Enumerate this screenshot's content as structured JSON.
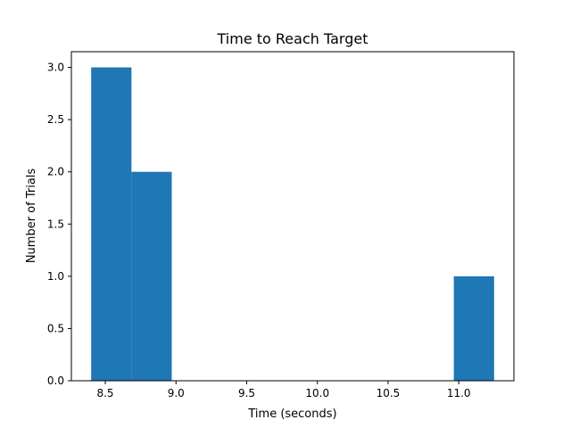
{
  "chart_data": {
    "type": "bar",
    "title": "Time to Reach Target",
    "xlabel": "Time (seconds)",
    "ylabel": "Number of Trials",
    "bins": [
      {
        "start": 8.4,
        "end": 8.685,
        "count": 3
      },
      {
        "start": 8.685,
        "end": 8.97,
        "count": 2
      },
      {
        "start": 8.97,
        "end": 9.255,
        "count": 0
      },
      {
        "start": 9.255,
        "end": 9.54,
        "count": 0
      },
      {
        "start": 9.54,
        "end": 9.825,
        "count": 0
      },
      {
        "start": 9.825,
        "end": 10.11,
        "count": 0
      },
      {
        "start": 10.11,
        "end": 10.395,
        "count": 0
      },
      {
        "start": 10.395,
        "end": 10.68,
        "count": 0
      },
      {
        "start": 10.68,
        "end": 10.965,
        "count": 0
      },
      {
        "start": 10.965,
        "end": 11.25,
        "count": 1
      }
    ],
    "xlim": [
      8.26,
      11.39
    ],
    "ylim": [
      0,
      3.15
    ],
    "xticks": [
      8.5,
      9.0,
      9.5,
      10.0,
      10.5,
      11.0
    ],
    "xtick_labels": [
      "8.5",
      "9.0",
      "9.5",
      "10.0",
      "10.5",
      "11.0"
    ],
    "yticks": [
      0.0,
      0.5,
      1.0,
      1.5,
      2.0,
      2.5,
      3.0
    ],
    "ytick_labels": [
      "0.0",
      "0.5",
      "1.0",
      "1.5",
      "2.0",
      "2.5",
      "3.0"
    ],
    "bar_color": "#1f77b4",
    "grid": false,
    "legend": "none"
  }
}
